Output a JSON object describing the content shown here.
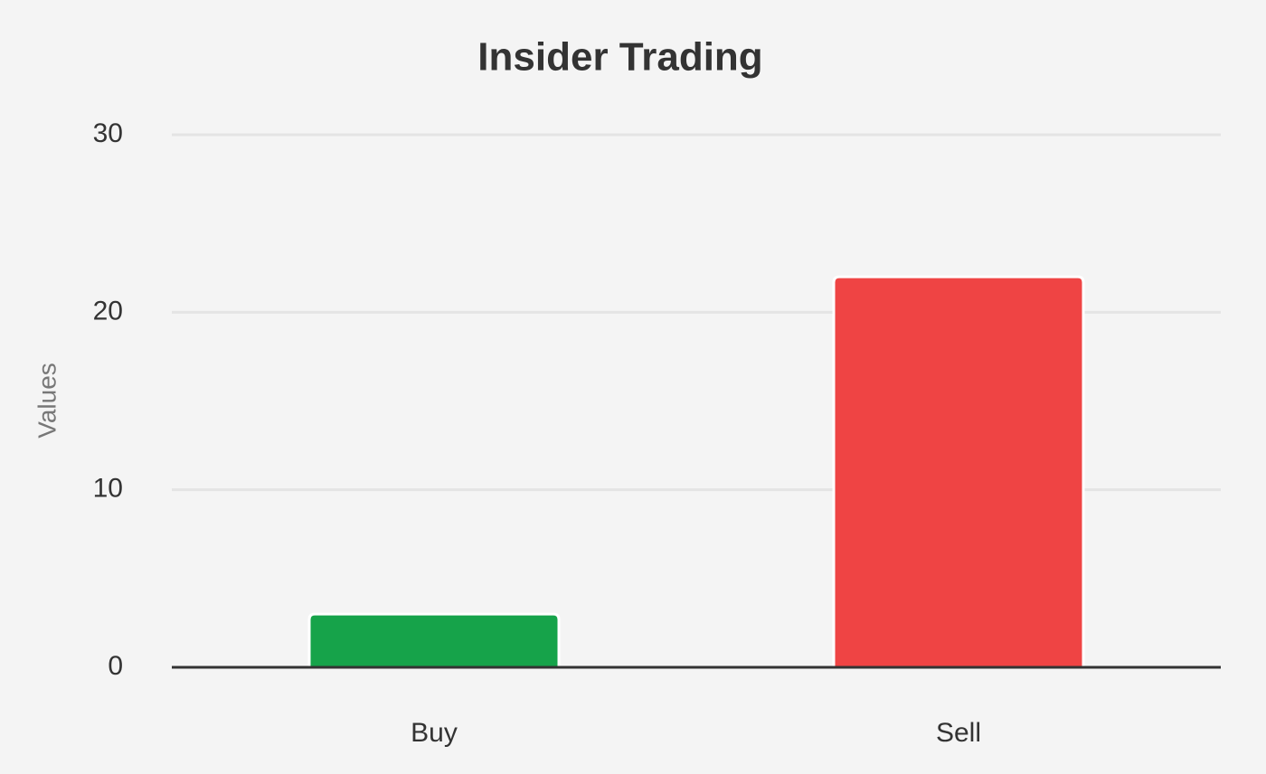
{
  "chart_data": {
    "type": "bar",
    "title": "Insider Trading",
    "y_label": "Values",
    "categories": [
      "Buy",
      "Sell"
    ],
    "values": [
      3,
      22
    ],
    "colors": [
      "#16a34a",
      "#ef4444"
    ],
    "ylim": [
      0,
      30
    ],
    "yticks": [
      0,
      10,
      20,
      30
    ],
    "grid": true
  }
}
